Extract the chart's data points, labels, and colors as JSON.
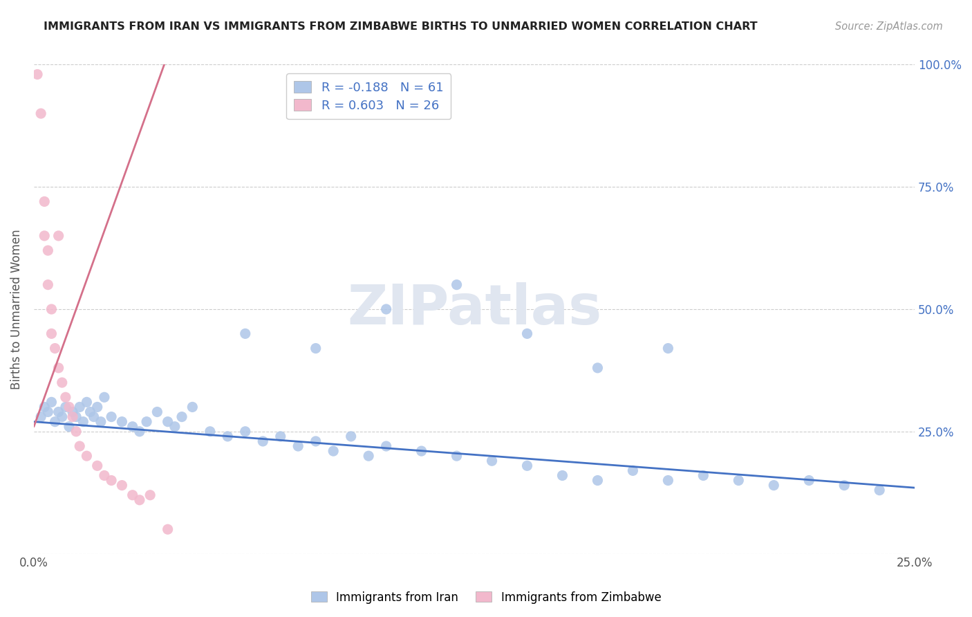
{
  "title": "IMMIGRANTS FROM IRAN VS IMMIGRANTS FROM ZIMBABWE BIRTHS TO UNMARRIED WOMEN CORRELATION CHART",
  "source": "Source: ZipAtlas.com",
  "ylabel": "Births to Unmarried Women",
  "legend_iran_R": -0.188,
  "legend_iran_N": 61,
  "legend_iran_label": "Immigrants from Iran",
  "legend_zimbabwe_R": 0.603,
  "legend_zimbabwe_N": 26,
  "legend_zimbabwe_label": "Immigrants from Zimbabwe",
  "iran_color": "#aec6e8",
  "zimbabwe_color": "#f2b8cc",
  "iran_line_color": "#4472c4",
  "zimbabwe_line_color": "#d4708a",
  "xlim": [
    0.0,
    0.25
  ],
  "ylim": [
    0.0,
    1.0
  ],
  "background_color": "#ffffff",
  "watermark_text": "ZIPatlas",
  "watermark_color": "#e0e6f0",
  "iran_scatter_x": [
    0.002,
    0.003,
    0.004,
    0.005,
    0.006,
    0.007,
    0.008,
    0.009,
    0.01,
    0.011,
    0.012,
    0.013,
    0.014,
    0.015,
    0.016,
    0.017,
    0.018,
    0.019,
    0.02,
    0.022,
    0.025,
    0.028,
    0.03,
    0.032,
    0.035,
    0.038,
    0.04,
    0.042,
    0.045,
    0.05,
    0.055,
    0.06,
    0.065,
    0.07,
    0.075,
    0.08,
    0.085,
    0.09,
    0.095,
    0.1,
    0.11,
    0.12,
    0.13,
    0.14,
    0.15,
    0.16,
    0.17,
    0.18,
    0.19,
    0.2,
    0.21,
    0.22,
    0.23,
    0.24,
    0.06,
    0.08,
    0.1,
    0.12,
    0.14,
    0.16,
    0.18
  ],
  "iran_scatter_y": [
    0.28,
    0.3,
    0.29,
    0.31,
    0.27,
    0.29,
    0.28,
    0.3,
    0.26,
    0.29,
    0.28,
    0.3,
    0.27,
    0.31,
    0.29,
    0.28,
    0.3,
    0.27,
    0.32,
    0.28,
    0.27,
    0.26,
    0.25,
    0.27,
    0.29,
    0.27,
    0.26,
    0.28,
    0.3,
    0.25,
    0.24,
    0.25,
    0.23,
    0.24,
    0.22,
    0.23,
    0.21,
    0.24,
    0.2,
    0.22,
    0.21,
    0.2,
    0.19,
    0.18,
    0.16,
    0.15,
    0.17,
    0.15,
    0.16,
    0.15,
    0.14,
    0.15,
    0.14,
    0.13,
    0.45,
    0.42,
    0.5,
    0.55,
    0.45,
    0.38,
    0.42
  ],
  "zimbabwe_scatter_x": [
    0.001,
    0.002,
    0.003,
    0.003,
    0.004,
    0.004,
    0.005,
    0.005,
    0.006,
    0.007,
    0.007,
    0.008,
    0.009,
    0.01,
    0.011,
    0.012,
    0.013,
    0.015,
    0.018,
    0.02,
    0.022,
    0.025,
    0.028,
    0.03,
    0.033,
    0.038
  ],
  "zimbabwe_scatter_y": [
    0.98,
    0.9,
    0.72,
    0.65,
    0.62,
    0.55,
    0.5,
    0.45,
    0.42,
    0.65,
    0.38,
    0.35,
    0.32,
    0.3,
    0.28,
    0.25,
    0.22,
    0.2,
    0.18,
    0.16,
    0.15,
    0.14,
    0.12,
    0.11,
    0.12,
    0.05
  ],
  "iran_trend_x0": 0.0,
  "iran_trend_x1": 0.25,
  "iran_trend_y0": 0.27,
  "iran_trend_y1": 0.135,
  "zim_trend_x0": 0.0,
  "zim_trend_x1": 0.038,
  "zim_trend_y0": 0.26,
  "zim_trend_y1": 1.02
}
